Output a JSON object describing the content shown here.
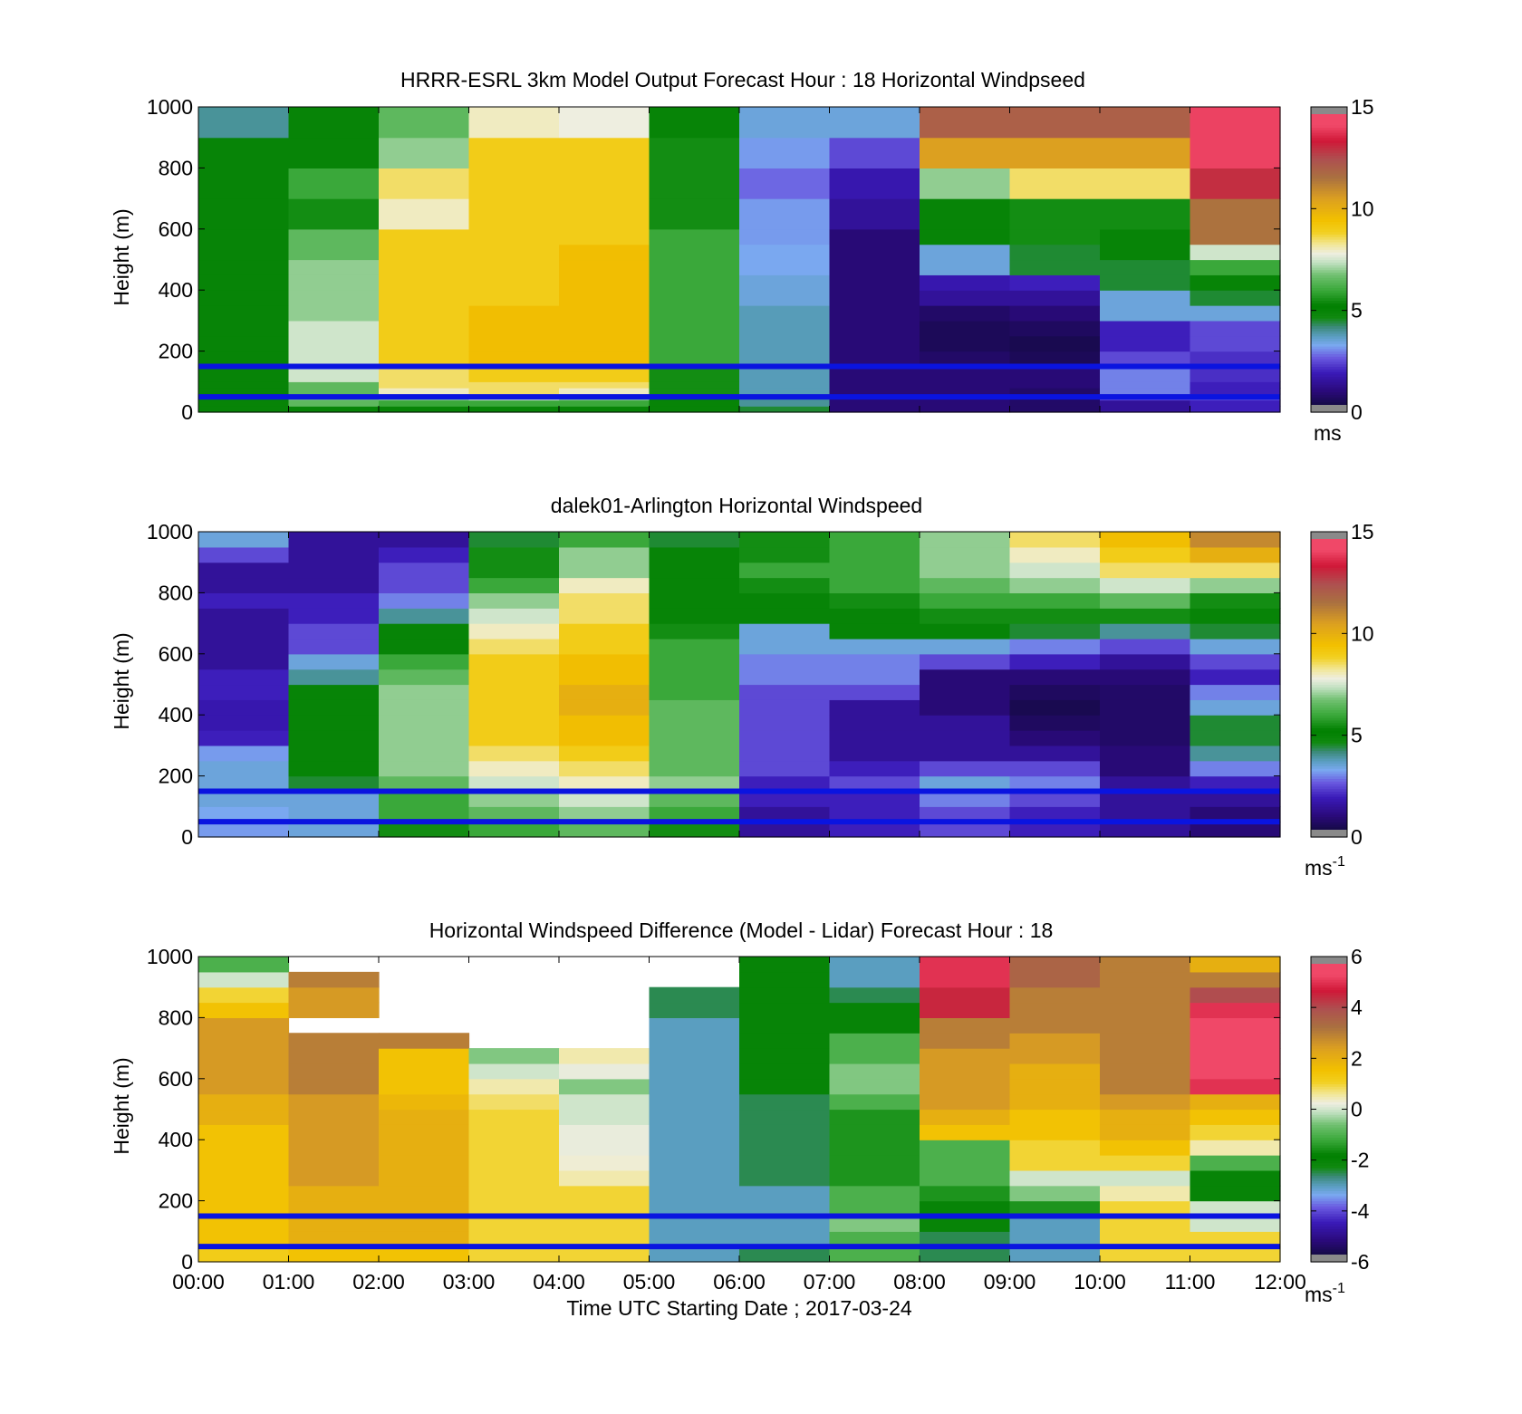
{
  "figure": {
    "xlabel": "Time UTC  Starting Date ; 2017-03-24",
    "x_ticks": [
      "00:00",
      "01:00",
      "02:00",
      "03:00",
      "04:00",
      "05:00",
      "06:00",
      "07:00",
      "08:00",
      "09:00",
      "10:00",
      "11:00",
      "12:00"
    ]
  },
  "chart_data": [
    {
      "type": "heatmap",
      "title": "HRRR-ESRL 3km Model Output   Forecast Hour : 18 Horizontal Windpseed",
      "ylabel": "Height (m)",
      "ylim": [
        0,
        1000
      ],
      "y_ticks": [
        0,
        200,
        400,
        600,
        800,
        1000
      ],
      "xlim": [
        0,
        12
      ],
      "colorbar": {
        "range": [
          0,
          15
        ],
        "ticks": [
          0,
          5,
          10,
          15
        ],
        "unit": "ms",
        "unit_sup": ""
      },
      "hlines": [
        150,
        50
      ],
      "levels": [
        0,
        20,
        40,
        60,
        80,
        100,
        150,
        200,
        250,
        300,
        350,
        400,
        450,
        500,
        550,
        600,
        700,
        800,
        900,
        1000
      ],
      "values": [
        [
          5.0,
          5.0,
          5.0,
          5.0,
          5.0,
          5.0,
          5.0,
          5.0,
          5.0,
          5.0,
          5.0,
          5.0,
          5.0,
          5.0,
          5.0,
          5.0,
          5.0,
          5.0,
          4.0
        ],
        [
          5.0,
          6.5,
          6.8,
          6.5,
          6.5,
          7.5,
          7.5,
          7.5,
          7.5,
          7.0,
          7.0,
          7.0,
          7.0,
          6.5,
          6.5,
          5.5,
          6.0,
          5.0,
          5.0
        ],
        [
          5.0,
          6.0,
          7.0,
          8.0,
          8.5,
          8.5,
          9.0,
          9.0,
          9.0,
          9.0,
          9.0,
          9.0,
          9.0,
          9.0,
          9.0,
          8.0,
          8.5,
          7.0,
          6.5
        ],
        [
          5.0,
          6.0,
          7.5,
          8.5,
          8.5,
          9.0,
          9.5,
          9.5,
          9.5,
          9.5,
          9.0,
          9.0,
          9.0,
          9.0,
          9.0,
          9.0,
          9.0,
          9.0,
          8.0
        ],
        [
          5.0,
          6.0,
          7.0,
          8.0,
          8.5,
          9.0,
          9.5,
          9.5,
          9.5,
          9.5,
          9.5,
          9.5,
          9.5,
          9.5,
          9.0,
          9.0,
          9.0,
          9.0,
          7.8
        ],
        [
          5.0,
          5.0,
          5.0,
          5.5,
          5.5,
          5.5,
          6.0,
          6.0,
          6.0,
          6.0,
          6.0,
          6.0,
          6.0,
          6.0,
          6.0,
          5.5,
          5.5,
          5.5,
          5.0
        ],
        [
          4.5,
          4.0,
          4.0,
          3.8,
          3.8,
          3.8,
          3.8,
          3.8,
          3.8,
          3.8,
          3.5,
          3.5,
          3.3,
          3.3,
          3.2,
          3.2,
          2.8,
          3.2,
          3.5
        ],
        [
          1.0,
          1.0,
          1.0,
          1.0,
          1.0,
          1.0,
          1.0,
          1.0,
          1.0,
          1.0,
          1.0,
          1.0,
          1.0,
          1.0,
          1.0,
          1.5,
          1.8,
          2.5,
          3.5
        ],
        [
          1.0,
          1.0,
          1.0,
          1.0,
          1.0,
          1.0,
          0.8,
          0.6,
          0.6,
          0.8,
          1.5,
          1.8,
          3.5,
          3.5,
          5.0,
          5.0,
          7.0,
          10.5,
          12.0
        ],
        [
          0.8,
          0.8,
          0.8,
          0.8,
          1.0,
          1.0,
          0.6,
          0.5,
          0.7,
          1.0,
          1.5,
          2.0,
          4.5,
          4.5,
          5.5,
          5.5,
          8.5,
          10.5,
          12.0
        ],
        [
          1.5,
          1.5,
          2.5,
          3.0,
          3.0,
          3.0,
          2.5,
          2.0,
          2.0,
          3.5,
          3.5,
          4.5,
          4.5,
          5.0,
          5.0,
          5.5,
          8.5,
          10.5,
          12.0
        ],
        [
          2.0,
          2.0,
          2.5,
          2.0,
          2.0,
          2.2,
          2.2,
          2.5,
          2.5,
          3.5,
          4.5,
          5.0,
          6.0,
          7.5,
          11.5,
          11.5,
          13.0,
          14.0,
          14.0
        ]
      ]
    },
    {
      "type": "heatmap",
      "title": "dalek01-Arlington  Horizontal Windspeed",
      "ylabel": "Height (m)",
      "ylim": [
        0,
        1000
      ],
      "y_ticks": [
        0,
        200,
        400,
        600,
        800,
        1000
      ],
      "xlim": [
        0,
        12
      ],
      "colorbar": {
        "range": [
          0,
          15
        ],
        "ticks": [
          0,
          5,
          10,
          15
        ],
        "unit": "ms",
        "unit_sup": "-1"
      },
      "hlines": [
        150,
        50
      ],
      "levels": [
        0,
        50,
        100,
        150,
        200,
        250,
        300,
        350,
        400,
        450,
        500,
        550,
        600,
        650,
        700,
        750,
        800,
        850,
        900,
        950,
        1000
      ],
      "values": [
        [
          3.2,
          3.3,
          3.5,
          3.5,
          3.5,
          3.2,
          2.0,
          1.8,
          1.8,
          2.0,
          2.0,
          1.5,
          1.5,
          1.5,
          1.5,
          2.0,
          1.5,
          1.5,
          2.5,
          3.5
        ],
        [
          3.5,
          3.5,
          3.5,
          4.5,
          5.0,
          5.0,
          5.0,
          5.0,
          5.0,
          5.0,
          4.0,
          3.5,
          2.5,
          2.5,
          2.0,
          2.0,
          1.5,
          1.5,
          1.5,
          1.5
        ],
        [
          5.5,
          6.0,
          6.0,
          6.5,
          7.0,
          7.0,
          7.0,
          7.0,
          7.0,
          7.0,
          6.5,
          6.0,
          5.0,
          5.0,
          4.0,
          3.0,
          2.5,
          2.5,
          2.0,
          1.5
        ],
        [
          6.0,
          6.5,
          7.0,
          7.5,
          8.0,
          8.5,
          9.0,
          9.0,
          9.0,
          9.0,
          9.0,
          9.0,
          8.5,
          8.0,
          7.5,
          7.0,
          6.0,
          5.5,
          5.5,
          4.5
        ],
        [
          6.5,
          7.0,
          7.5,
          8.0,
          8.5,
          9.0,
          9.5,
          9.5,
          10.0,
          10.0,
          9.5,
          9.5,
          9.0,
          9.0,
          8.5,
          8.5,
          8.0,
          7.0,
          7.0,
          6.0
        ],
        [
          5.5,
          6.0,
          6.5,
          7.0,
          6.5,
          6.5,
          6.5,
          6.5,
          6.5,
          6.0,
          6.0,
          6.0,
          6.0,
          5.5,
          5.0,
          5.0,
          5.0,
          5.0,
          5.0,
          4.5
        ],
        [
          1.5,
          1.5,
          2.0,
          2.0,
          2.5,
          2.5,
          2.5,
          2.5,
          2.5,
          2.5,
          3.0,
          3.0,
          3.5,
          3.5,
          5.0,
          5.0,
          5.5,
          6.0,
          5.5,
          5.5
        ],
        [
          2.0,
          2.0,
          2.0,
          2.5,
          2.0,
          1.5,
          1.5,
          1.5,
          1.5,
          2.5,
          3.0,
          3.0,
          3.5,
          5.0,
          5.0,
          5.5,
          6.0,
          6.0,
          6.0,
          6.0
        ],
        [
          2.5,
          2.5,
          3.0,
          3.5,
          2.5,
          1.5,
          1.5,
          1.5,
          1.0,
          1.0,
          1.0,
          2.5,
          3.5,
          5.0,
          5.5,
          6.0,
          6.5,
          7.0,
          7.0,
          7.0
        ],
        [
          2.0,
          2.0,
          2.5,
          3.0,
          2.5,
          1.5,
          1.0,
          0.7,
          0.5,
          0.7,
          1.0,
          2.0,
          3.0,
          4.5,
          5.5,
          6.0,
          7.0,
          7.5,
          8.0,
          8.5
        ],
        [
          1.5,
          1.5,
          1.5,
          1.5,
          1.0,
          1.0,
          0.8,
          0.8,
          0.8,
          0.8,
          1.0,
          1.5,
          2.5,
          4.0,
          5.5,
          6.5,
          7.5,
          8.5,
          9.0,
          9.5
        ],
        [
          1.0,
          1.0,
          1.5,
          2.0,
          3.0,
          4.0,
          4.5,
          4.5,
          3.5,
          3.0,
          2.0,
          2.5,
          3.5,
          4.5,
          5.0,
          5.5,
          7.0,
          8.5,
          10.0,
          11.0
        ]
      ]
    },
    {
      "type": "heatmap",
      "title": "Horizontal Windspeed Difference (Model - Lidar) Forecast Hour : 18",
      "ylabel": "Height (m)",
      "ylim": [
        0,
        1000
      ],
      "y_ticks": [
        0,
        200,
        400,
        600,
        800,
        1000
      ],
      "xlim": [
        0,
        12
      ],
      "colorbar": {
        "range": [
          -6,
          6
        ],
        "ticks": [
          -6,
          -4,
          -2,
          0,
          2,
          4,
          6
        ],
        "unit": "ms",
        "unit_sup": "-1"
      },
      "hlines": [
        150,
        50
      ],
      "levels": [
        0,
        50,
        100,
        150,
        200,
        250,
        300,
        350,
        400,
        450,
        500,
        550,
        600,
        650,
        700,
        750,
        800,
        850,
        900,
        950,
        1000
      ],
      "values": [
        [
          1.2,
          1.5,
          1.5,
          1.5,
          1.5,
          1.5,
          1.5,
          1.5,
          1.5,
          2.0,
          2.0,
          2.5,
          2.5,
          2.5,
          2.5,
          2.5,
          1.5,
          1.0,
          0.0,
          -1.0
        ],
        [
          1.5,
          2.0,
          2.0,
          2.0,
          2.0,
          2.5,
          2.5,
          2.5,
          2.5,
          2.5,
          2.5,
          3.0,
          3.0,
          3.0,
          3.0,
          null,
          2.5,
          2.5,
          3.0,
          null
        ],
        [
          1.5,
          2.0,
          2.0,
          2.0,
          2.0,
          2.0,
          2.0,
          2.0,
          2.0,
          2.0,
          1.8,
          1.5,
          1.5,
          1.5,
          3.0,
          null,
          null,
          null,
          null,
          null
        ],
        [
          1.0,
          1.0,
          1.0,
          1.0,
          1.0,
          1.0,
          1.0,
          1.0,
          1.0,
          1.0,
          0.8,
          0.5,
          0.0,
          -0.5,
          null,
          null,
          null,
          null,
          null,
          null
        ],
        [
          1.0,
          1.0,
          1.0,
          1.0,
          1.0,
          0.5,
          0.3,
          0.2,
          0.2,
          0.0,
          0.0,
          -0.5,
          0.2,
          0.5,
          null,
          null,
          null,
          null,
          null,
          null
        ],
        [
          -3.0,
          -3.0,
          -3.0,
          -3.0,
          -3.0,
          -3.0,
          -3.0,
          -3.0,
          -3.0,
          -3.0,
          -3.0,
          -3.0,
          -3.0,
          -3.0,
          -3.0,
          -3.0,
          -2.5,
          -2.5,
          null,
          null
        ],
        [
          -2.5,
          -3.0,
          -3.0,
          -3.0,
          -3.0,
          -2.5,
          -2.5,
          -2.5,
          -2.5,
          -2.5,
          -2.5,
          -2.0,
          -2.0,
          -2.0,
          -2.0,
          -2.0,
          -2.0,
          -2.0,
          -2.0,
          -2.0
        ],
        [
          -1.0,
          -1.0,
          -0.5,
          -1.0,
          -1.0,
          -1.5,
          -1.5,
          -1.5,
          -1.5,
          -1.5,
          -1.0,
          -0.5,
          -0.5,
          -1.0,
          -1.0,
          -2.0,
          -2.0,
          -2.5,
          -3.0,
          -3.0
        ],
        [
          -2.5,
          -2.5,
          -2.0,
          -2.0,
          -1.5,
          -1.0,
          -1.0,
          -1.0,
          1.5,
          2.0,
          2.5,
          2.5,
          2.5,
          2.5,
          3.0,
          3.0,
          4.5,
          4.5,
          5.0,
          5.0
        ],
        [
          -3.0,
          -3.0,
          -3.0,
          -1.5,
          -0.5,
          0.0,
          1.0,
          1.0,
          1.5,
          1.5,
          2.0,
          2.0,
          2.0,
          2.5,
          2.5,
          3.0,
          3.0,
          3.0,
          3.5,
          3.5
        ],
        [
          1.0,
          1.0,
          1.0,
          1.0,
          0.5,
          0.0,
          1.0,
          1.5,
          2.0,
          2.0,
          2.5,
          3.0,
          3.0,
          3.0,
          3.0,
          3.0,
          3.0,
          3.0,
          3.0,
          3.0
        ],
        [
          1.0,
          1.0,
          0.0,
          0.0,
          -2.0,
          -2.0,
          -1.0,
          0.5,
          1.0,
          1.5,
          2.0,
          5.0,
          5.5,
          5.5,
          5.5,
          5.5,
          5.0,
          4.0,
          3.0,
          2.0
        ]
      ]
    }
  ]
}
